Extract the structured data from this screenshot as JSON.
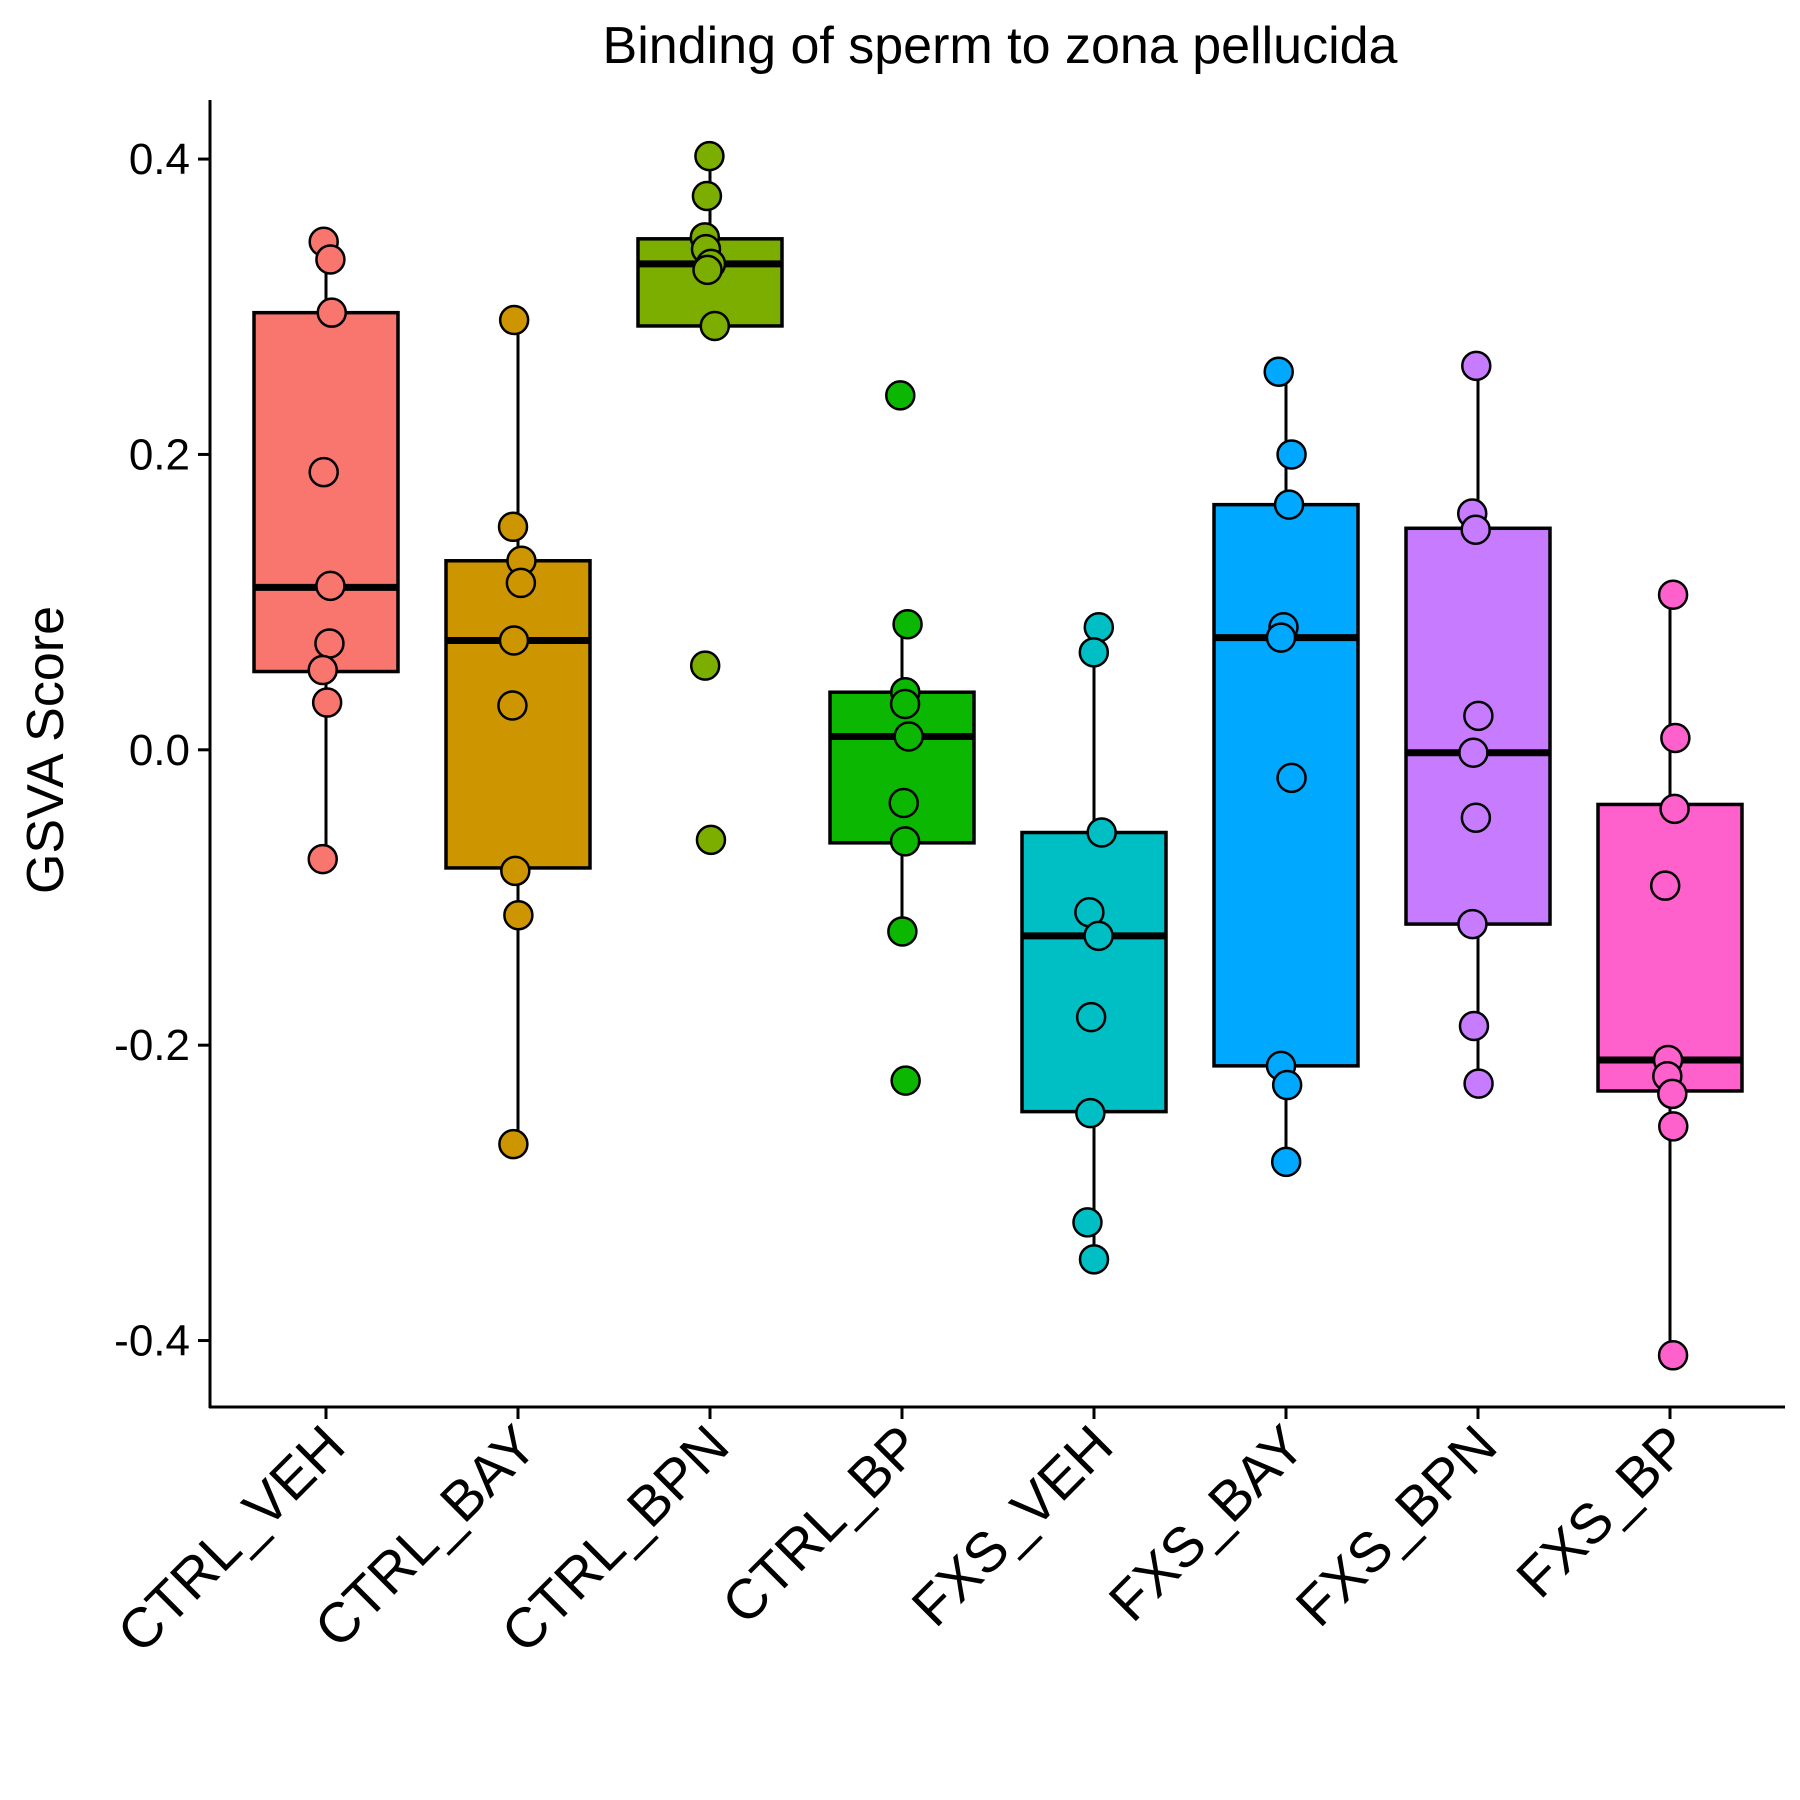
{
  "chart_data": {
    "type": "box",
    "title": "Binding of sperm to zona pellucida",
    "xlabel": "",
    "ylabel": "GSVA Score",
    "ylim": [
      -0.445,
      0.44
    ],
    "yticks": [
      -0.4,
      -0.2,
      0.0,
      0.2,
      0.4
    ],
    "ytick_labels": [
      "-0.4",
      "-0.2",
      "0.0",
      "0.2",
      "0.4"
    ],
    "grid": false,
    "legend": "none",
    "categories": [
      "CTRL_VEH",
      "CTRL_BAY",
      "CTRL_BPN",
      "CTRL_BP",
      "FXS_VEH",
      "FXS_BAY",
      "FXS_BPN",
      "FXS_BP"
    ],
    "colors": [
      "#F8766D",
      "#CD9600",
      "#7CAE00",
      "#0CB702",
      "#00BFC4",
      "#00A9FF",
      "#C77CFF",
      "#FF61CC"
    ],
    "boxes": [
      {
        "q1": 0.053,
        "median": 0.11,
        "q3": 0.296,
        "whisker_low": -0.074,
        "whisker_high": 0.344,
        "points": [
          [
            -0.012,
            0.344
          ],
          [
            0.023,
            0.332
          ],
          [
            0.03,
            0.296
          ],
          [
            -0.012,
            0.188
          ],
          [
            0.023,
            0.111
          ],
          [
            0.018,
            0.072
          ],
          [
            -0.017,
            0.054
          ],
          [
            0.006,
            0.032
          ],
          [
            -0.017,
            -0.074
          ]
        ]
      },
      {
        "q1": -0.08,
        "median": 0.074,
        "q3": 0.128,
        "whisker_low": -0.267,
        "whisker_high": 0.29,
        "points": [
          [
            -0.02,
            0.291
          ],
          [
            -0.026,
            0.151
          ],
          [
            0.018,
            0.128
          ],
          [
            0.015,
            0.113
          ],
          [
            -0.021,
            0.074
          ],
          [
            -0.029,
            0.03
          ],
          [
            -0.014,
            -0.082
          ],
          [
            0.002,
            -0.112
          ],
          [
            -0.024,
            -0.267
          ]
        ]
      },
      {
        "q1": 0.287,
        "median": 0.329,
        "q3": 0.346,
        "whisker_low": 0.287,
        "whisker_high": 0.402,
        "points": [
          [
            -0.003,
            0.402
          ],
          [
            -0.016,
            0.375
          ],
          [
            -0.027,
            0.347
          ],
          [
            -0.021,
            0.339
          ],
          [
            0.005,
            0.329
          ],
          [
            -0.013,
            0.325
          ],
          [
            0.025,
            0.287
          ],
          [
            -0.025,
            0.057
          ],
          [
            0.005,
            -0.061
          ]
        ]
      },
      {
        "q1": -0.063,
        "median": 0.009,
        "q3": 0.039,
        "whisker_low": -0.123,
        "whisker_high": 0.085,
        "points": [
          [
            -0.009,
            0.24
          ],
          [
            0.029,
            0.085
          ],
          [
            0.017,
            0.039
          ],
          [
            0.016,
            0.031
          ],
          [
            0.035,
            0.009
          ],
          [
            0.009,
            -0.036
          ],
          [
            0.016,
            -0.062
          ],
          [
            0.002,
            -0.123
          ],
          [
            0.019,
            -0.224
          ]
        ]
      },
      {
        "q1": -0.245,
        "median": -0.126,
        "q3": -0.056,
        "whisker_low": -0.345,
        "whisker_high": 0.083,
        "points": [
          [
            0.025,
            0.083
          ],
          [
            -0.001,
            0.066
          ],
          [
            0.04,
            -0.056
          ],
          [
            -0.024,
            -0.11
          ],
          [
            0.024,
            -0.126
          ],
          [
            -0.015,
            -0.181
          ],
          [
            -0.019,
            -0.246
          ],
          [
            -0.034,
            -0.32
          ],
          [
            0.0,
            -0.345
          ]
        ]
      },
      {
        "q1": -0.214,
        "median": 0.076,
        "q3": 0.166,
        "whisker_low": -0.279,
        "whisker_high": 0.255,
        "points": [
          [
            -0.038,
            0.256
          ],
          [
            0.029,
            0.2
          ],
          [
            0.016,
            0.166
          ],
          [
            -0.013,
            0.083
          ],
          [
            -0.026,
            0.076
          ],
          [
            0.029,
            -0.019
          ],
          [
            -0.026,
            -0.214
          ],
          [
            0.006,
            -0.227
          ],
          [
            0.001,
            -0.279
          ]
        ]
      },
      {
        "q1": -0.118,
        "median": -0.002,
        "q3": 0.15,
        "whisker_low": -0.226,
        "whisker_high": 0.26,
        "points": [
          [
            -0.009,
            0.26
          ],
          [
            -0.03,
            0.16
          ],
          [
            -0.012,
            0.149
          ],
          [
            0.002,
            0.023
          ],
          [
            -0.024,
            -0.002
          ],
          [
            -0.011,
            -0.046
          ],
          [
            -0.029,
            -0.118
          ],
          [
            -0.021,
            -0.187
          ],
          [
            0.003,
            -0.226
          ]
        ]
      },
      {
        "q1": -0.231,
        "median": -0.21,
        "q3": -0.037,
        "whisker_low": -0.41,
        "whisker_high": 0.105,
        "points": [
          [
            0.016,
            0.105
          ],
          [
            0.028,
            0.008
          ],
          [
            0.024,
            -0.04
          ],
          [
            -0.025,
            -0.092
          ],
          [
            -0.01,
            -0.21
          ],
          [
            -0.014,
            -0.221
          ],
          [
            0.012,
            -0.233
          ],
          [
            0.017,
            -0.255
          ],
          [
            0.016,
            -0.41
          ]
        ]
      }
    ]
  }
}
